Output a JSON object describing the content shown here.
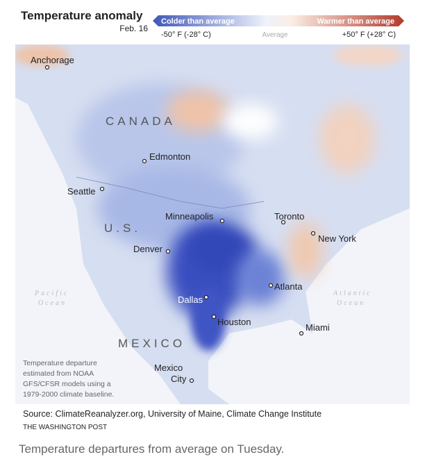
{
  "header": {
    "title": "Temperature anomaly",
    "date": "Feb. 16"
  },
  "legend": {
    "cold_label": "Colder than average",
    "warm_label": "Warmer than average",
    "min_label": "-50° F (-28° C)",
    "mid_label": "Average",
    "max_label": "+50° F (+28° C)"
  },
  "map": {
    "regions": [
      "CANADA",
      "U.S.",
      "MEXICO"
    ],
    "oceans": [
      [
        "Pacific",
        "Ocean"
      ],
      [
        "Atlantic",
        "Ocean"
      ]
    ],
    "cities": [
      "Anchorage",
      "Edmonton",
      "Seattle",
      "Minneapolis",
      "Toronto",
      "New York",
      "Denver",
      "Atlanta",
      "Dallas",
      "Houston",
      "Miami",
      [
        "Mexico",
        "City"
      ]
    ]
  },
  "note": [
    "Temperature departure",
    "estimated from NOAA",
    "GFS/CFSR models using a",
    "1979-2000 climate baseline."
  ],
  "source": "Source: ClimateReanalyzer.org, University of Maine, Climate Change Institute",
  "credit": "THE WASHINGTON POST",
  "caption": "Temperature departures from average on Tuesday."
}
